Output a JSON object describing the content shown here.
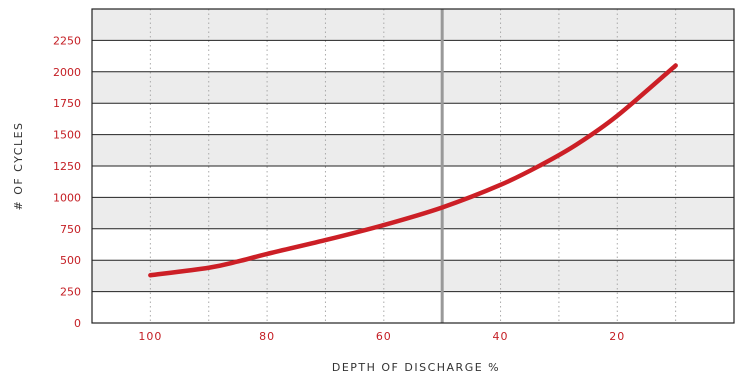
{
  "colors": {
    "line": "#cc1f26",
    "tick_text": "#c41e24",
    "band_fill": "#ececec",
    "grid_major": "#222222",
    "grid_minor": "#aaaaaa",
    "marker": "#999999"
  },
  "chart_data": {
    "type": "line",
    "xlabel": "DEPTH OF DISCHARGE %",
    "ylabel": "# OF CYCLES",
    "xlim": [
      110,
      0
    ],
    "ylim": [
      0,
      2500
    ],
    "x_ticks": [
      100,
      80,
      60,
      40,
      20
    ],
    "y_ticks": [
      0,
      250,
      500,
      750,
      1000,
      1250,
      1500,
      1750,
      2000,
      2250
    ],
    "x_reversed": true,
    "grid": true,
    "vertical_marker_x": 50,
    "series": [
      {
        "x": [
          100,
          90,
          85,
          80,
          70,
          60,
          50,
          40,
          33,
          27,
          20,
          10
        ],
        "y": [
          380,
          440,
          490,
          550,
          660,
          780,
          920,
          1100,
          1260,
          1420,
          1650,
          2050
        ]
      }
    ]
  }
}
